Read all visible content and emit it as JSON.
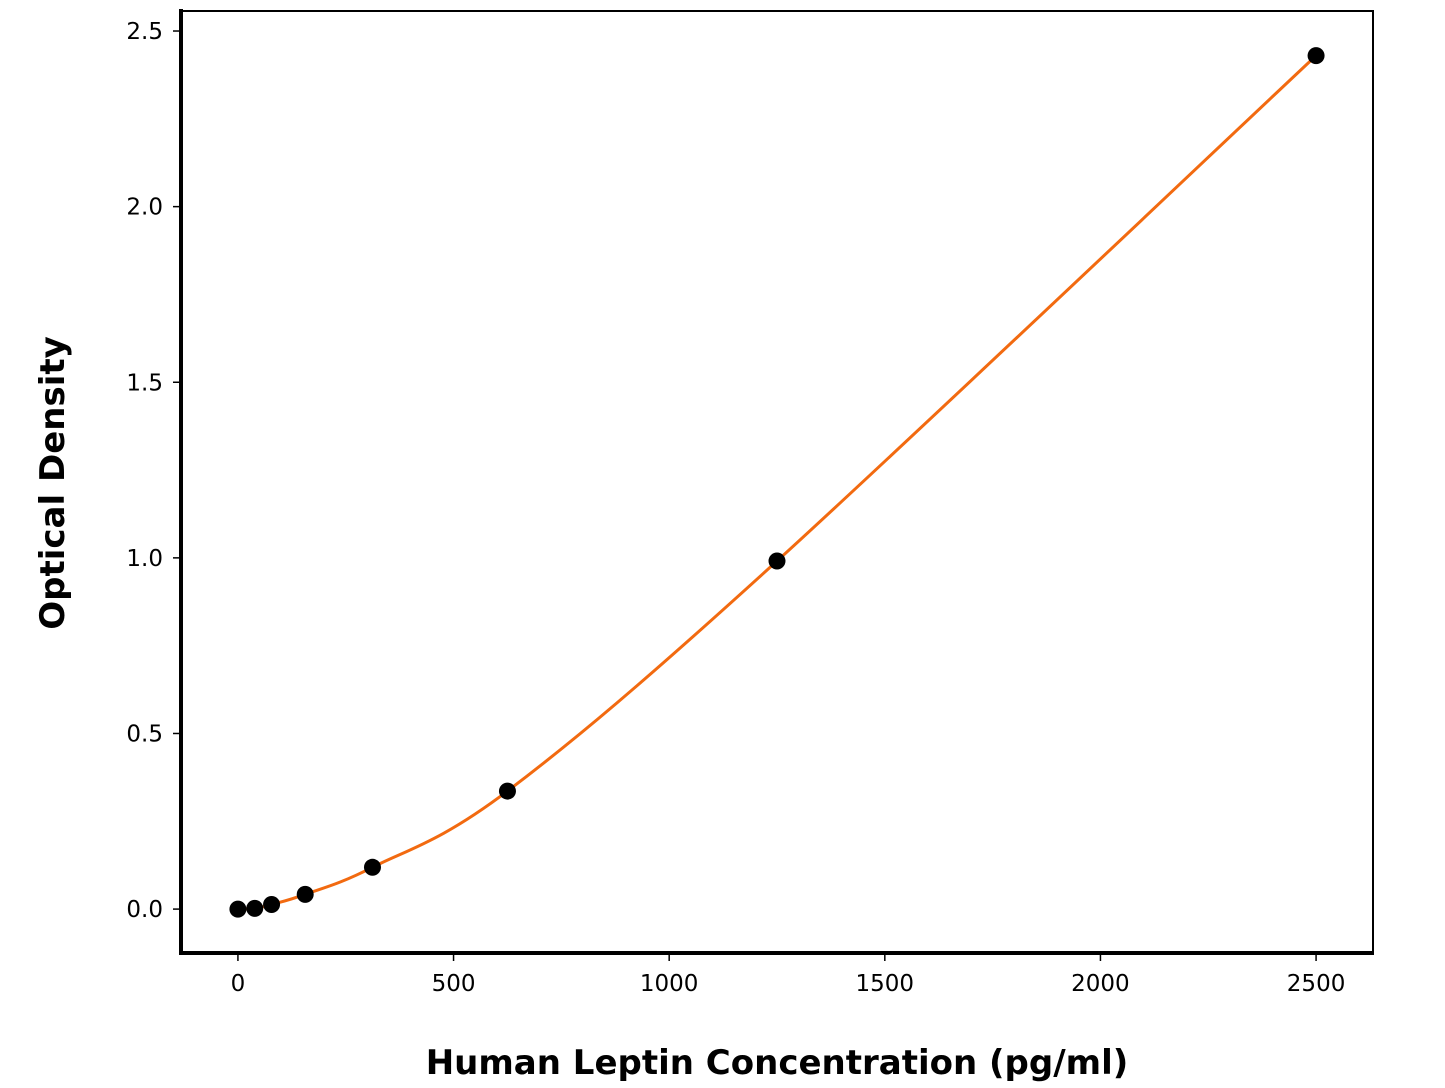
{
  "chart_data": {
    "type": "scatter",
    "title": "",
    "xlabel": "Human Leptin Concentration (pg/ml)",
    "ylabel": "Optical Density",
    "xlim": [
      -132,
      2632
    ],
    "ylim": [
      -0.125,
      2.557
    ],
    "xticks": [
      0,
      500,
      1000,
      1500,
      2000,
      2500
    ],
    "xtick_labels": [
      "0",
      "500",
      "1000",
      "1500",
      "2000",
      "2500"
    ],
    "yticks": [
      0.0,
      0.5,
      1.0,
      1.5,
      2.0,
      2.5
    ],
    "ytick_labels": [
      "0.0",
      "0.5",
      "1.0",
      "1.5",
      "2.0",
      "2.5"
    ],
    "grid": false,
    "series": [
      {
        "x": [
          0,
          39,
          78,
          156,
          312,
          625,
          1250,
          2500
        ],
        "y": [
          0.0,
          0.002,
          0.013,
          0.042,
          0.119,
          0.336,
          0.991,
          2.43
        ],
        "marker_color": "#000000",
        "fit_line_color": "#f26a10"
      }
    ]
  }
}
